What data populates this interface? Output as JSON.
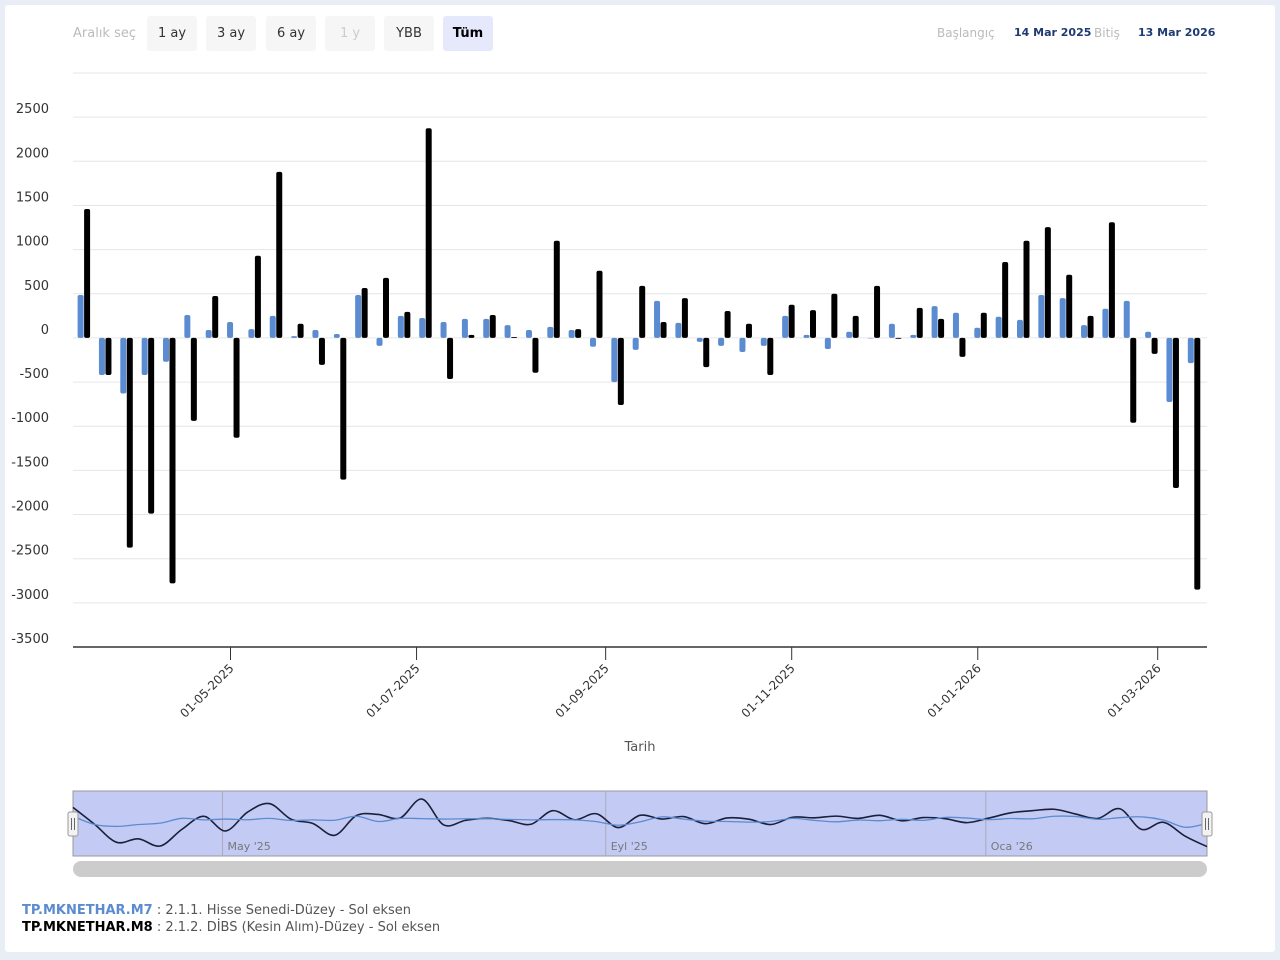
{
  "range_selector": {
    "label": "Aralık seç",
    "buttons": [
      {
        "label": "1 ay",
        "state": "normal"
      },
      {
        "label": "3 ay",
        "state": "normal"
      },
      {
        "label": "6 ay",
        "state": "normal"
      },
      {
        "label": "1 y",
        "state": "disabled"
      },
      {
        "label": "YBB",
        "state": "normal"
      },
      {
        "label": "Tüm",
        "state": "active"
      }
    ]
  },
  "date_inputs": {
    "from_label": "Başlangıç",
    "from_value": "14 Mar 2025",
    "to_label": "Bitiş",
    "to_value": "13 Mar 2026"
  },
  "navigator": {
    "labels": [
      "May '25",
      "Eyl '25",
      "Oca '26"
    ]
  },
  "legend": [
    {
      "code": "TP.MKNETHAR.M7",
      "desc": " : 2.1.1. Hisse Senedi-Düzey - Sol eksen",
      "color": "#5b8bd0"
    },
    {
      "code": "TP.MKNETHAR.M8",
      "desc": " : 2.1.2. DİBS (Kesin Alım)-Düzey - Sol eksen",
      "color": "#000000"
    }
  ],
  "chart_data": {
    "type": "bar",
    "xlabel": "Tarih",
    "ylabel": "",
    "ylim": [
      -3500,
      3000
    ],
    "yticks": [
      "2500",
      "2000",
      "1500",
      "1000",
      "500",
      "0",
      "-500",
      "-1000",
      "-1500",
      "-2000",
      "-2500",
      "-3000",
      "-3500"
    ],
    "xticks": [
      "01-05-2025",
      "01-07-2025",
      "01-09-2025",
      "01-11-2025",
      "01-01-2026",
      "01-03-2026"
    ],
    "grid": true,
    "categories": [
      "2025-03-14",
      "2025-03-21",
      "2025-03-28",
      "2025-04-04",
      "2025-04-11",
      "2025-04-18",
      "2025-04-25",
      "2025-05-02",
      "2025-05-09",
      "2025-05-16",
      "2025-05-23",
      "2025-05-30",
      "2025-06-06",
      "2025-06-13",
      "2025-06-20",
      "2025-06-27",
      "2025-07-04",
      "2025-07-11",
      "2025-07-18",
      "2025-07-25",
      "2025-08-01",
      "2025-08-08",
      "2025-08-15",
      "2025-08-22",
      "2025-08-29",
      "2025-09-05",
      "2025-09-12",
      "2025-09-19",
      "2025-09-26",
      "2025-10-03",
      "2025-10-10",
      "2025-10-17",
      "2025-10-24",
      "2025-10-31",
      "2025-11-07",
      "2025-11-14",
      "2025-11-21",
      "2025-11-28",
      "2025-12-05",
      "2025-12-12",
      "2025-12-19",
      "2025-12-26",
      "2026-01-02",
      "2026-01-09",
      "2026-01-16",
      "2026-01-23",
      "2026-01-30",
      "2026-02-06",
      "2026-02-13",
      "2026-02-20",
      "2026-02-27",
      "2026-03-06",
      "2026-03-13"
    ],
    "series": [
      {
        "name": "TP.MKNETHAR.M7",
        "color": "#5b8bd0",
        "values": [
          486,
          -420,
          -630,
          -420,
          -270,
          260,
          90,
          180,
          100,
          250,
          20,
          90,
          45,
          486,
          -90,
          250,
          225,
          180,
          215,
          215,
          145,
          90,
          125,
          90,
          -100,
          -500,
          -135,
          420,
          170,
          -45,
          -90,
          -160,
          -90,
          250,
          35,
          -125,
          70,
          0,
          160,
          35,
          360,
          285,
          115,
          240,
          205,
          486,
          450,
          145,
          330,
          420,
          70,
          -725,
          -285
        ]
      },
      {
        "name": "TP.MKNETHAR.M8",
        "color": "#000000",
        "values": [
          1460,
          -420,
          -2375,
          -1990,
          -2780,
          -940,
          475,
          -1130,
          930,
          1880,
          160,
          -305,
          -1605,
          565,
          680,
          295,
          2375,
          -465,
          35,
          260,
          10,
          -395,
          1100,
          100,
          760,
          -760,
          590,
          180,
          450,
          -330,
          305,
          160,
          -420,
          375,
          315,
          500,
          250,
          590,
          -10,
          340,
          215,
          -215,
          285,
          860,
          1100,
          1255,
          715,
          250,
          1310,
          -960,
          -180,
          -1700,
          -2850
        ]
      }
    ]
  }
}
